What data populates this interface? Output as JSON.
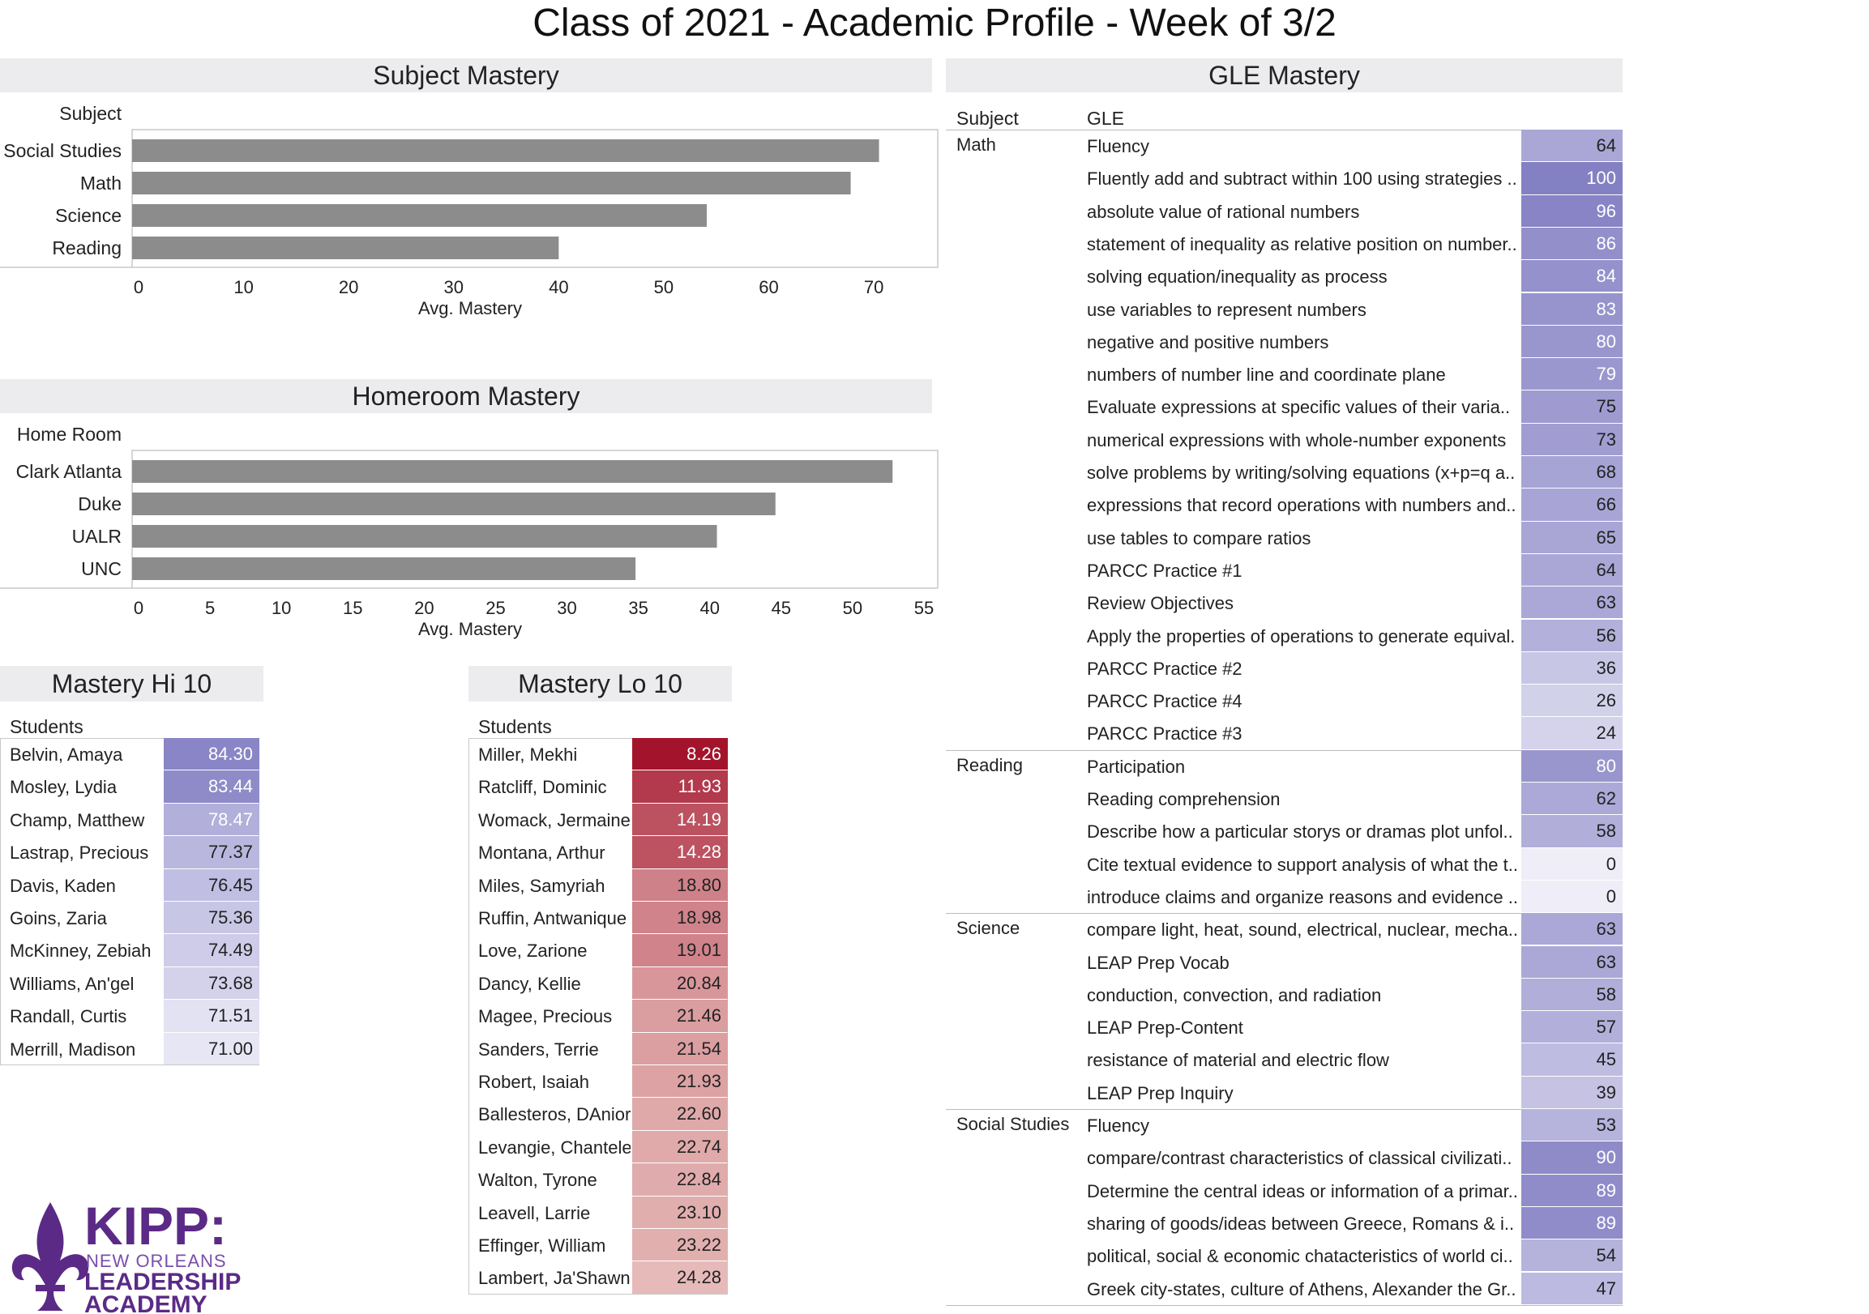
{
  "title": "Class of 2021 - Academic Profile - Week of 3/2",
  "subject_mastery": {
    "heading": "Subject Mastery",
    "row_header": "Subject",
    "xlabel": "Avg. Mastery"
  },
  "homeroom_mastery": {
    "heading": "Homeroom Mastery",
    "row_header": "Home Room",
    "xlabel": "Avg. Mastery"
  },
  "gle_mastery": {
    "heading": "GLE Mastery",
    "col_subject": "Subject",
    "col_gle": "GLE"
  },
  "hi10": {
    "heading": "Mastery Hi 10",
    "col_header": "Students",
    "rows": [
      {
        "name": "Belvin, Amaya",
        "value": "84.30"
      },
      {
        "name": "Mosley, Lydia",
        "value": "83.44"
      },
      {
        "name": "Champ, Matthew",
        "value": "78.47"
      },
      {
        "name": "Lastrap, Precious",
        "value": "77.37"
      },
      {
        "name": "Davis, Kaden",
        "value": "76.45"
      },
      {
        "name": "Goins, Zaria",
        "value": "75.36"
      },
      {
        "name": "McKinney, Zebiah",
        "value": "74.49"
      },
      {
        "name": "Williams, An'gel",
        "value": "73.68"
      },
      {
        "name": "Randall, Curtis",
        "value": "71.51"
      },
      {
        "name": "Merrill, Madison",
        "value": "71.00"
      }
    ]
  },
  "lo10": {
    "heading": "Mastery Lo 10",
    "col_header": "Students",
    "rows": [
      {
        "name": "Miller, Mekhi",
        "value": "8.26"
      },
      {
        "name": "Ratcliff, Dominic",
        "value": "11.93"
      },
      {
        "name": "Womack, Jermaine",
        "value": "14.19"
      },
      {
        "name": "Montana, Arthur",
        "value": "14.28"
      },
      {
        "name": "Miles, Samyriah",
        "value": "18.80"
      },
      {
        "name": "Ruffin, Antwanique",
        "value": "18.98"
      },
      {
        "name": "Love, Zarione",
        "value": "19.01"
      },
      {
        "name": "Dancy, Kellie",
        "value": "20.84"
      },
      {
        "name": "Magee, Precious",
        "value": "21.46"
      },
      {
        "name": "Sanders, Terrie",
        "value": "21.54"
      },
      {
        "name": "Robert, Isaiah",
        "value": "21.93"
      },
      {
        "name": "Ballesteros, DAnior",
        "value": "22.60"
      },
      {
        "name": "Levangie, Chantele",
        "value": "22.74"
      },
      {
        "name": "Walton, Tyrone",
        "value": "22.84"
      },
      {
        "name": "Leavell, Larrie",
        "value": "23.10"
      },
      {
        "name": "Effinger, William",
        "value": "23.22"
      },
      {
        "name": "Lambert, Ja'Shawn",
        "value": "24.28"
      }
    ]
  },
  "logo": {
    "line1": "KIPP:",
    "line2": "NEW ORLEANS",
    "line3": "LEADERSHIP",
    "line4": "ACADEMY"
  },
  "colors": {
    "bar": "#8c8c8c",
    "purple_hi": "#8480c4",
    "purple_lo": "#eeedf8",
    "red_hi": "#a3102a",
    "red_lo": "#e9c2bf",
    "logo_purple": "#5b2a86"
  },
  "chart_data": [
    {
      "type": "bar",
      "orientation": "horizontal",
      "categories": [
        "Social Studies",
        "Math",
        "Science",
        "Reading"
      ],
      "values": [
        70.5,
        67.8,
        54.1,
        40.0
      ],
      "xlabel": "Avg. Mastery",
      "ylabel": "Subject",
      "xlim": [
        0,
        72
      ],
      "ticks": [
        0,
        10,
        20,
        30,
        40,
        50,
        60,
        70
      ]
    },
    {
      "type": "bar",
      "orientation": "horizontal",
      "categories": [
        "Clark Atlanta",
        "Duke",
        "UALR",
        "UNC"
      ],
      "values": [
        52.8,
        44.6,
        40.5,
        34.8
      ],
      "xlabel": "Avg. Mastery",
      "ylabel": "Home Room",
      "xlim": [
        0,
        55
      ],
      "ticks": [
        0,
        5,
        10,
        15,
        20,
        25,
        30,
        35,
        40,
        45,
        50,
        55
      ]
    },
    {
      "type": "table",
      "groups": [
        {
          "subject": "Math",
          "rows": [
            {
              "gle": "Fluency",
              "value": 64
            },
            {
              "gle": "Fluently add and subtract within 100 using strategies ..",
              "value": 100
            },
            {
              "gle": "absolute value of rational numbers",
              "value": 96
            },
            {
              "gle": "statement of inequality as relative position on number..",
              "value": 86
            },
            {
              "gle": "solving equation/inequality as process",
              "value": 84
            },
            {
              "gle": "use variables to represent numbers",
              "value": 83
            },
            {
              "gle": "negative and positive numbers",
              "value": 80
            },
            {
              "gle": "numbers of number line and coordinate plane",
              "value": 79
            },
            {
              "gle": "Evaluate expressions at specific values of their varia..",
              "value": 75
            },
            {
              "gle": "numerical expressions with whole-number exponents",
              "value": 73
            },
            {
              "gle": "solve problems by writing/solving equations (x+p=q a..",
              "value": 68
            },
            {
              "gle": "expressions that record operations with numbers and..",
              "value": 66
            },
            {
              "gle": "use tables to compare ratios",
              "value": 65
            },
            {
              "gle": "PARCC Practice #1",
              "value": 64
            },
            {
              "gle": "Review Objectives",
              "value": 63
            },
            {
              "gle": "Apply the properties of operations to generate equival..",
              "value": 56
            },
            {
              "gle": "PARCC Practice #2",
              "value": 36
            },
            {
              "gle": "PARCC Practice #4",
              "value": 26
            },
            {
              "gle": "PARCC Practice #3",
              "value": 24
            }
          ]
        },
        {
          "subject": "Reading",
          "rows": [
            {
              "gle": "Participation",
              "value": 80
            },
            {
              "gle": "Reading comprehension",
              "value": 62
            },
            {
              "gle": "Describe how a particular storys or dramas plot unfol..",
              "value": 58
            },
            {
              "gle": "Cite textual evidence to support analysis of what the t..",
              "value": 0
            },
            {
              "gle": "introduce claims and organize reasons and evidence ..",
              "value": 0
            }
          ]
        },
        {
          "subject": "Science",
          "rows": [
            {
              "gle": "compare light, heat, sound, electrical, nuclear, mecha..",
              "value": 63
            },
            {
              "gle": "LEAP Prep  Vocab",
              "value": 63
            },
            {
              "gle": "conduction, convection, and radiation",
              "value": 58
            },
            {
              "gle": "LEAP Prep-Content",
              "value": 57
            },
            {
              "gle": "resistance of material and electric flow",
              "value": 45
            },
            {
              "gle": "LEAP Prep  Inquiry",
              "value": 39
            }
          ]
        },
        {
          "subject": "Social Studies",
          "rows": [
            {
              "gle": "Fluency",
              "value": 53
            },
            {
              "gle": "compare/contrast characteristics of classical civilizati..",
              "value": 90
            },
            {
              "gle": "Determine the central ideas or information of a primar..",
              "value": 89
            },
            {
              "gle": "sharing of goods/ideas between Greece, Romans & i..",
              "value": 89
            },
            {
              "gle": "political, social & economic chatacteristics of world ci..",
              "value": 54
            },
            {
              "gle": "Greek city-states, culture of Athens, Alexander the Gr..",
              "value": 47
            }
          ]
        }
      ]
    }
  ]
}
